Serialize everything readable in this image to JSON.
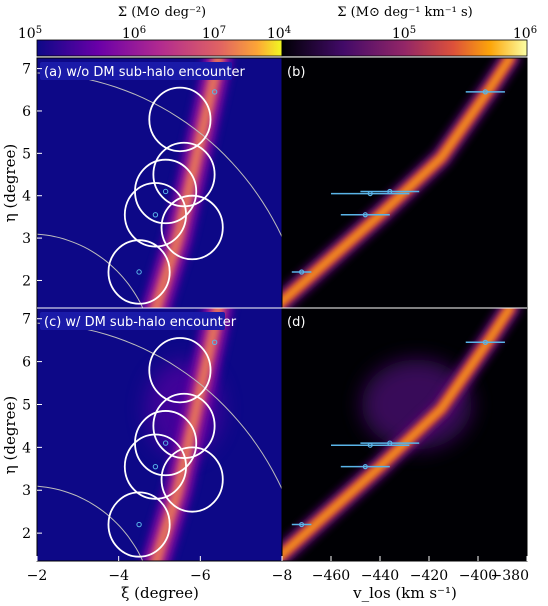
{
  "chart_data": [
    {
      "panel": "a",
      "type": "heatmap",
      "title": "(a) w/o DM sub-halo encounter",
      "xlabel": "ξ (degree)",
      "ylabel": "η (degree)",
      "xlim": [
        -2,
        -8
      ],
      "ylim": [
        1.35,
        7.25
      ],
      "xticks": [
        -2,
        -4,
        -6,
        -8
      ],
      "yticks": [
        2,
        3,
        4,
        5,
        6,
        7
      ],
      "colorbar": {
        "label": "Σ (M⊙ deg⁻²)",
        "scale": "log",
        "range": [
          100000,
          100000000
        ],
        "ticks": [
          "10^5",
          "10^6",
          "10^7"
        ],
        "colormap": "plasma"
      },
      "stream_track": [
        [
          -4.9,
          1.3
        ],
        [
          -5.45,
          3.0
        ],
        [
          -5.9,
          4.9
        ],
        [
          -6.3,
          6.6
        ],
        [
          -6.45,
          7.3
        ]
      ],
      "fields": [
        {
          "xi": -4.5,
          "eta": 2.2
        },
        {
          "xi": -4.9,
          "eta": 3.55
        },
        {
          "xi": -5.15,
          "eta": 4.1
        },
        {
          "xi": -5.6,
          "eta": 4.5
        },
        {
          "xi": -5.5,
          "eta": 5.8
        },
        {
          "xi": -5.8,
          "eta": 3.25
        }
      ],
      "field_radius_deg": 0.75,
      "stars": [
        {
          "xi": -4.5,
          "eta": 2.2
        },
        {
          "xi": -4.9,
          "eta": 3.55
        },
        {
          "xi": -5.15,
          "eta": 4.1
        },
        {
          "xi": -6.35,
          "eta": 6.45
        }
      ],
      "arcs": [
        {
          "center": [
            -1.8,
            0.0
          ],
          "radius": 3.1
        },
        {
          "center": [
            -1.8,
            0.0
          ],
          "radius": 6.9
        }
      ]
    },
    {
      "panel": "b",
      "type": "heatmap",
      "title": "(b)",
      "xlabel": "",
      "ylabel": "",
      "xlim": [
        -480,
        -380
      ],
      "ylim": [
        1.35,
        7.25
      ],
      "colorbar": {
        "label": "Σ (M⊙ deg⁻¹ km⁻¹ s)",
        "scale": "log",
        "range": [
          10000,
          1000000
        ],
        "ticks": [
          "10^4",
          "10^5",
          "10^6"
        ],
        "colormap": "inferno"
      },
      "stream_track": [
        [
          -483,
          1.35
        ],
        [
          -440,
          3.55
        ],
        [
          -415,
          4.9
        ],
        [
          -395,
          6.55
        ],
        [
          -387,
          7.25
        ]
      ],
      "points": [
        {
          "v": -472,
          "eta": 2.2,
          "err": 4
        },
        {
          "v": -446,
          "eta": 3.55,
          "err": 10
        },
        {
          "v": -444,
          "eta": 4.05,
          "err": 16
        },
        {
          "v": -436,
          "eta": 4.1,
          "err": 12
        },
        {
          "v": -397,
          "eta": 6.45,
          "err": 8
        }
      ]
    },
    {
      "panel": "c",
      "type": "heatmap",
      "title": "(c) w/ DM sub-halo encounter",
      "xlabel": "ξ (degree)",
      "ylabel": "η (degree)",
      "xlim": [
        -2,
        -8
      ],
      "ylim": [
        1.35,
        7.25
      ],
      "xticks": [
        -2,
        -4,
        -6,
        -8
      ],
      "yticks": [
        2,
        3,
        4,
        5,
        6,
        7
      ],
      "fields_same_as": "a",
      "perturbation": {
        "xi": -5.6,
        "eta": 4.9,
        "spread": 0.9
      }
    },
    {
      "panel": "d",
      "type": "heatmap",
      "title": "(d)",
      "xlabel": "v_los (km s⁻¹)",
      "ylabel": "",
      "xlim": [
        -480,
        -380
      ],
      "ylim": [
        1.35,
        7.25
      ],
      "xticks": [
        -460,
        -440,
        -420,
        -400,
        -380
      ],
      "points_same_as": "b",
      "perturbation": {
        "v": -425,
        "eta": 5.0,
        "spread_v": 18,
        "spread_eta": 0.8
      }
    }
  ],
  "shared_left_edge_tick": "−2",
  "shared_mid_tick": "−8",
  "colors": {
    "panel_bg_left": "#0d0887",
    "panel_bg_right": "#000004",
    "field_circle": "#ffffff",
    "data_point": "#5ab4e8",
    "arc": "#bdbdbd"
  }
}
